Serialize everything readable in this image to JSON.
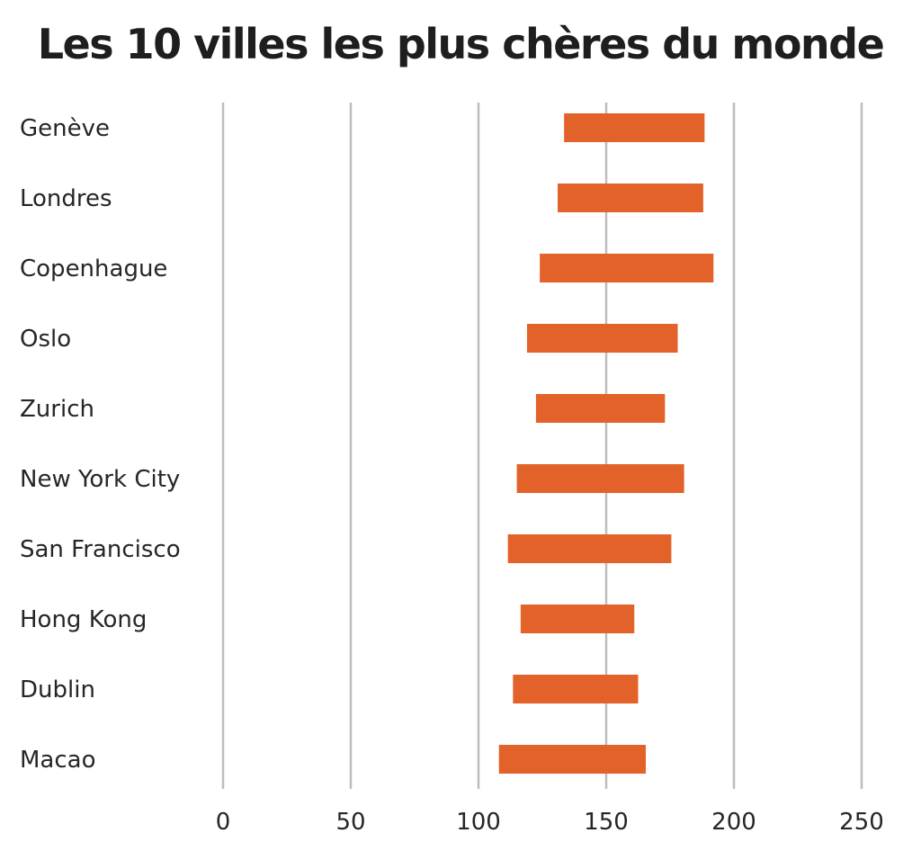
{
  "chart_data": {
    "type": "bar",
    "subtype": "floating-range-horizontal",
    "title": "Les 10 villes les plus chères du monde",
    "xlabel": "",
    "ylabel": "",
    "xlim": [
      0,
      250
    ],
    "xticks": [
      0,
      50,
      100,
      150,
      200,
      250
    ],
    "xtick_labels": [
      "0",
      "50",
      "100",
      "150",
      "200",
      "250"
    ],
    "grid": "vertical",
    "legend": "none",
    "bar_color": "#E2622A",
    "grid_color": "#BDBDBD",
    "categories": [
      "Genève",
      "Londres",
      "Copenhague",
      "Oslo",
      "Zurich",
      "New York City",
      "San Francisco",
      "Hong Kong",
      "Dublin",
      "Macao"
    ],
    "series": [
      {
        "name": "range",
        "low": [
          133.5,
          131,
          124,
          119,
          122.5,
          115,
          111.5,
          116.5,
          113.5,
          108
        ],
        "high": [
          188.5,
          188,
          192,
          178,
          173,
          180.5,
          175.5,
          161,
          162.5,
          165.5
        ]
      }
    ]
  }
}
